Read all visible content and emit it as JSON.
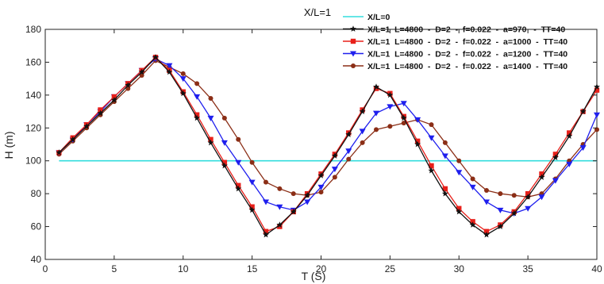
{
  "chart_data": {
    "type": "line",
    "title": "X/L=1",
    "xlabel": "T   (S)",
    "ylabel": "H  (m)",
    "xlim": [
      0,
      40
    ],
    "ylim": [
      40,
      180
    ],
    "xticks": [
      0,
      5,
      10,
      15,
      20,
      25,
      30,
      35,
      40
    ],
    "yticks": [
      40,
      60,
      80,
      100,
      120,
      140,
      160,
      180
    ],
    "grid": false,
    "legend_position": "top-right",
    "x": [
      1,
      2,
      3,
      4,
      5,
      6,
      7,
      8,
      9,
      10,
      11,
      12,
      13,
      14,
      15,
      16,
      17,
      18,
      19,
      20,
      21,
      22,
      23,
      24,
      25,
      26,
      27,
      28,
      29,
      30,
      31,
      32,
      33,
      34,
      35,
      36,
      37,
      38,
      39,
      40
    ],
    "series": [
      {
        "name": "X/L=0",
        "color": "#33dddd",
        "marker": "none",
        "x": [
          1,
          40
        ],
        "values": [
          100,
          100
        ]
      },
      {
        "name": "X/L=1  L=4800  -  D=2  -  f=0.022  -  a=970   -  TT=40",
        "color": "#111111",
        "marker": "star",
        "values": [
          105,
          113,
          121,
          129,
          137,
          146,
          154,
          163,
          154,
          141,
          126,
          111,
          97,
          83,
          70,
          55,
          61,
          69,
          79,
          91,
          103,
          116,
          130,
          145,
          140,
          126,
          110,
          94,
          80,
          69,
          61,
          55,
          60,
          68,
          78,
          90,
          102,
          115,
          130,
          145
        ]
      },
      {
        "name": "X/L=1  L=4800  -  D=2  -  f=0.022  -  a=1000  -  TT=40",
        "color": "#e8201a",
        "marker": "square",
        "values": [
          105,
          114,
          122,
          131,
          139,
          147,
          155,
          163,
          155,
          142,
          128,
          113,
          99,
          85,
          72,
          57,
          60,
          69,
          80,
          92,
          104,
          117,
          131,
          144,
          141,
          127,
          112,
          97,
          83,
          71,
          63,
          57,
          61,
          69,
          80,
          92,
          104,
          117,
          130,
          143
        ]
      },
      {
        "name": "X/L=1  L=4800  -  D=2  -  f=0.022  -  a=1200  -  TT=40",
        "color": "#1f1fee",
        "marker": "triangle-down",
        "values": [
          105,
          113,
          122,
          130,
          139,
          147,
          155,
          162,
          158,
          150,
          139,
          126,
          111,
          99,
          87,
          75,
          72,
          70,
          75,
          84,
          95,
          106,
          118,
          129,
          133,
          135,
          125,
          114,
          103,
          93,
          84,
          75,
          70,
          68,
          71,
          78,
          88,
          98,
          108,
          128
        ]
      },
      {
        "name": "X/L=1  L=4800  -  D=2  -  f=0.022  -  a=1400  -  TT=40",
        "color": "#8b2e16",
        "marker": "circle",
        "values": [
          104,
          112,
          120,
          128,
          136,
          144,
          152,
          161,
          157,
          153,
          147,
          138,
          126,
          113,
          99,
          87,
          83,
          80,
          79,
          81,
          90,
          101,
          111,
          119,
          121,
          123,
          125,
          122,
          111,
          100,
          89,
          82,
          80,
          79,
          78,
          80,
          89,
          100,
          110,
          119
        ]
      }
    ]
  }
}
